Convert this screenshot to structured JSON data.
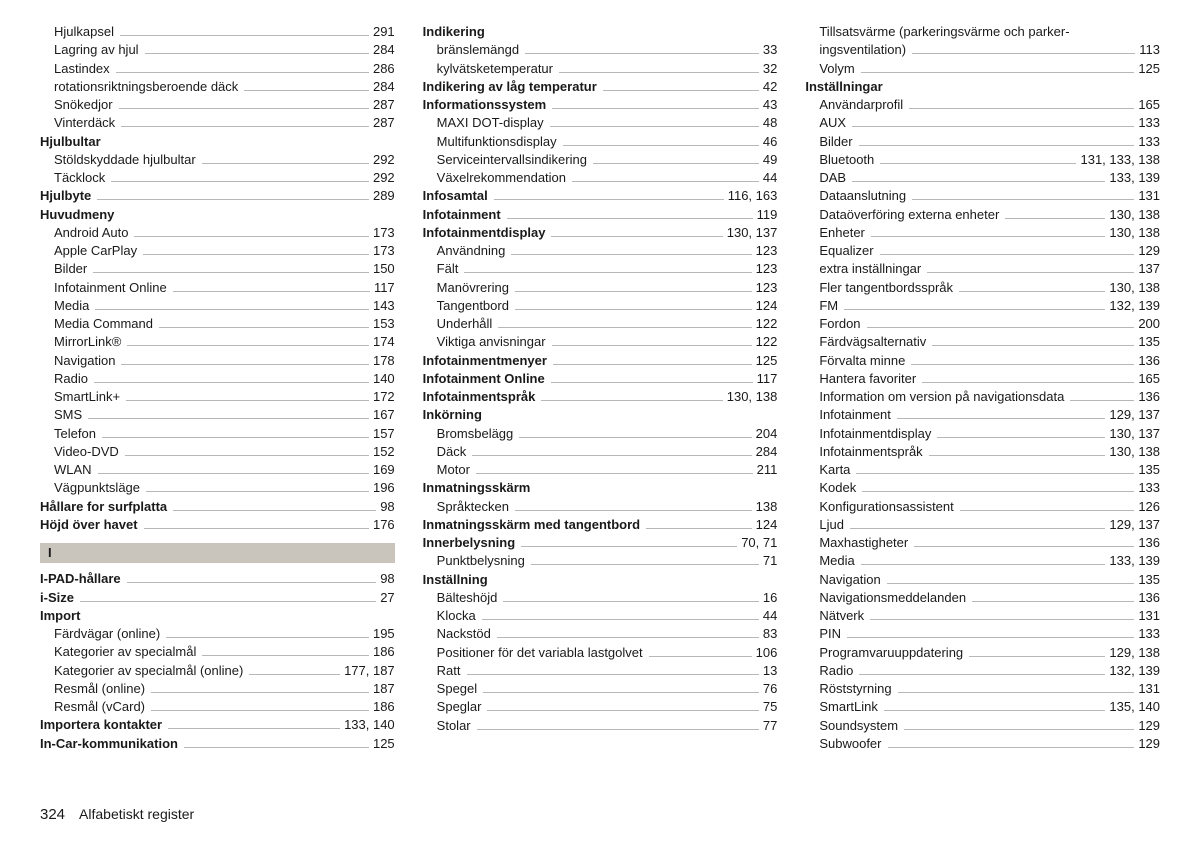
{
  "page_number": "324",
  "footer_title": "Alfabetiskt register",
  "letter_header": "I",
  "col1": [
    {
      "t": "Hjulkapsel",
      "p": "291",
      "sub": 1
    },
    {
      "t": "Lagring av hjul",
      "p": "284",
      "sub": 1
    },
    {
      "t": "Lastindex",
      "p": "286",
      "sub": 1
    },
    {
      "t": "rotationsriktningsberoende däck",
      "p": "284",
      "sub": 1
    },
    {
      "t": "Snökedjor",
      "p": "287",
      "sub": 1
    },
    {
      "t": "Vinterdäck",
      "p": "287",
      "sub": 1
    },
    {
      "t": "Hjulbultar",
      "p": "",
      "sub": 0,
      "bold": 1,
      "noleader": 1
    },
    {
      "t": "Stöldskyddade hjulbultar",
      "p": "292",
      "sub": 1
    },
    {
      "t": "Täcklock",
      "p": "292",
      "sub": 1
    },
    {
      "t": "Hjulbyte",
      "p": "289",
      "sub": 0,
      "bold": 1
    },
    {
      "t": "Huvudmeny",
      "p": "",
      "sub": 0,
      "bold": 1,
      "noleader": 1
    },
    {
      "t": "Android Auto",
      "p": "173",
      "sub": 1
    },
    {
      "t": "Apple CarPlay",
      "p": "173",
      "sub": 1
    },
    {
      "t": "Bilder",
      "p": "150",
      "sub": 1
    },
    {
      "t": "Infotainment Online",
      "p": "117",
      "sub": 1
    },
    {
      "t": "Media",
      "p": "143",
      "sub": 1
    },
    {
      "t": "Media Command",
      "p": "153",
      "sub": 1
    },
    {
      "t": "MirrorLink®",
      "p": "174",
      "sub": 1
    },
    {
      "t": "Navigation",
      "p": "178",
      "sub": 1
    },
    {
      "t": "Radio",
      "p": "140",
      "sub": 1
    },
    {
      "t": "SmartLink+",
      "p": "172",
      "sub": 1
    },
    {
      "t": "SMS",
      "p": "167",
      "sub": 1
    },
    {
      "t": "Telefon",
      "p": "157",
      "sub": 1
    },
    {
      "t": "Video-DVD",
      "p": "152",
      "sub": 1
    },
    {
      "t": "WLAN",
      "p": "169",
      "sub": 1
    },
    {
      "t": "Vägpunktsläge",
      "p": "196",
      "sub": 1
    },
    {
      "t": "Hållare for surfplatta",
      "p": "98",
      "sub": 0,
      "bold": 1
    },
    {
      "t": "Höjd över havet",
      "p": "176",
      "sub": 0,
      "bold": 1
    }
  ],
  "col1b": [
    {
      "t": "I-PAD-hållare",
      "p": "98",
      "sub": 0,
      "bold": 1
    },
    {
      "t": "i-Size",
      "p": "27",
      "sub": 0,
      "bold": 1
    },
    {
      "t": "Import",
      "p": "",
      "sub": 0,
      "bold": 1,
      "noleader": 1
    },
    {
      "t": "Färdvägar (online)",
      "p": "195",
      "sub": 1
    },
    {
      "t": "Kategorier av specialmål",
      "p": "186",
      "sub": 1
    },
    {
      "t": "Kategorier av specialmål (online)",
      "p": "177, 187",
      "sub": 1
    },
    {
      "t": "Resmål (online)",
      "p": "187",
      "sub": 1
    },
    {
      "t": "Resmål (vCard)",
      "p": "186",
      "sub": 1
    },
    {
      "t": "Importera kontakter",
      "p": "133, 140",
      "sub": 0,
      "bold": 1
    },
    {
      "t": "In-Car-kommunikation",
      "p": "125",
      "sub": 0,
      "bold": 1
    }
  ],
  "col2": [
    {
      "t": "Indikering",
      "p": "",
      "sub": 0,
      "bold": 1,
      "noleader": 1
    },
    {
      "t": "bränslemängd",
      "p": "33",
      "sub": 1
    },
    {
      "t": "kylvätsketemperatur",
      "p": "32",
      "sub": 1
    },
    {
      "t": "Indikering av låg temperatur",
      "p": "42",
      "sub": 0,
      "bold": 1
    },
    {
      "t": "Informationssystem",
      "p": "43",
      "sub": 0,
      "bold": 1
    },
    {
      "t": "MAXI DOT-display",
      "p": "48",
      "sub": 1
    },
    {
      "t": "Multifunktionsdisplay",
      "p": "46",
      "sub": 1
    },
    {
      "t": "Serviceintervallsindikering",
      "p": "49",
      "sub": 1
    },
    {
      "t": "Växelrekommendation",
      "p": "44",
      "sub": 1
    },
    {
      "t": "Infosamtal",
      "p": "116, 163",
      "sub": 0,
      "bold": 1
    },
    {
      "t": "Infotainment",
      "p": "119",
      "sub": 0,
      "bold": 1
    },
    {
      "t": "Infotainmentdisplay",
      "p": "130, 137",
      "sub": 0,
      "bold": 1
    },
    {
      "t": "Användning",
      "p": "123",
      "sub": 1
    },
    {
      "t": "Fält",
      "p": "123",
      "sub": 1
    },
    {
      "t": "Manövrering",
      "p": "123",
      "sub": 1
    },
    {
      "t": "Tangentbord",
      "p": "124",
      "sub": 1
    },
    {
      "t": "Underhåll",
      "p": "122",
      "sub": 1
    },
    {
      "t": "Viktiga anvisningar",
      "p": "122",
      "sub": 1
    },
    {
      "t": "Infotainmentmenyer",
      "p": "125",
      "sub": 0,
      "bold": 1
    },
    {
      "t": "Infotainment Online",
      "p": "117",
      "sub": 0,
      "bold": 1
    },
    {
      "t": "Infotainmentspråk",
      "p": "130, 138",
      "sub": 0,
      "bold": 1
    },
    {
      "t": "Inkörning",
      "p": "",
      "sub": 0,
      "bold": 1,
      "noleader": 1
    },
    {
      "t": "Bromsbelägg",
      "p": "204",
      "sub": 1
    },
    {
      "t": "Däck",
      "p": "284",
      "sub": 1
    },
    {
      "t": "Motor",
      "p": "211",
      "sub": 1
    },
    {
      "t": "Inmatningsskärm",
      "p": "",
      "sub": 0,
      "bold": 1,
      "noleader": 1
    },
    {
      "t": "Språktecken",
      "p": "138",
      "sub": 1
    },
    {
      "t": "Inmatningsskärm med tangentbord",
      "p": "124",
      "sub": 0,
      "bold": 1
    },
    {
      "t": "Innerbelysning",
      "p": "70, 71",
      "sub": 0,
      "bold": 1
    },
    {
      "t": "Punktbelysning",
      "p": "71",
      "sub": 1
    },
    {
      "t": "Inställning",
      "p": "",
      "sub": 0,
      "bold": 1,
      "noleader": 1
    },
    {
      "t": "Bälteshöjd",
      "p": "16",
      "sub": 1
    },
    {
      "t": "Klocka",
      "p": "44",
      "sub": 1
    },
    {
      "t": "Nackstöd",
      "p": "83",
      "sub": 1
    },
    {
      "t": "Positioner för det variabla lastgolvet",
      "p": "106",
      "sub": 1
    },
    {
      "t": "Ratt",
      "p": "13",
      "sub": 1
    },
    {
      "t": "Spegel",
      "p": "76",
      "sub": 1
    },
    {
      "t": "Speglar",
      "p": "75",
      "sub": 1
    },
    {
      "t": "Stolar",
      "p": "77",
      "sub": 1
    }
  ],
  "col3": [
    {
      "t": "Tillsatsvärme (parkeringsvärme och parker-",
      "p": "",
      "sub": 1,
      "noleader": 1
    },
    {
      "t": "ingsventilation)",
      "p": "113",
      "sub": 1,
      "contline": 1
    },
    {
      "t": "Volym",
      "p": "125",
      "sub": 1
    },
    {
      "t": "Inställningar",
      "p": "",
      "sub": 0,
      "bold": 1,
      "noleader": 1
    },
    {
      "t": "Användarprofil",
      "p": "165",
      "sub": 1
    },
    {
      "t": "AUX",
      "p": "133",
      "sub": 1
    },
    {
      "t": "Bilder",
      "p": "133",
      "sub": 1
    },
    {
      "t": "Bluetooth",
      "p": "131, 133, 138",
      "sub": 1
    },
    {
      "t": "DAB",
      "p": "133, 139",
      "sub": 1
    },
    {
      "t": "Dataanslutning",
      "p": "131",
      "sub": 1
    },
    {
      "t": "Dataöverföring externa enheter",
      "p": "130, 138",
      "sub": 1
    },
    {
      "t": "Enheter",
      "p": "130, 138",
      "sub": 1
    },
    {
      "t": "Equalizer",
      "p": "129",
      "sub": 1
    },
    {
      "t": "extra inställningar",
      "p": "137",
      "sub": 1
    },
    {
      "t": "Fler tangentbordsspråk",
      "p": "130, 138",
      "sub": 1
    },
    {
      "t": "FM",
      "p": "132, 139",
      "sub": 1
    },
    {
      "t": "Fordon",
      "p": "200",
      "sub": 1
    },
    {
      "t": "Färdvägsalternativ",
      "p": "135",
      "sub": 1
    },
    {
      "t": "Förvalta minne",
      "p": "136",
      "sub": 1
    },
    {
      "t": "Hantera favoriter",
      "p": "165",
      "sub": 1
    },
    {
      "t": "Information om version på navigationsdata",
      "p": "136",
      "sub": 1
    },
    {
      "t": "Infotainment",
      "p": "129, 137",
      "sub": 1
    },
    {
      "t": "Infotainmentdisplay",
      "p": "130, 137",
      "sub": 1
    },
    {
      "t": "Infotainmentspråk",
      "p": "130, 138",
      "sub": 1
    },
    {
      "t": "Karta",
      "p": "135",
      "sub": 1
    },
    {
      "t": "Kodek",
      "p": "133",
      "sub": 1
    },
    {
      "t": "Konfigurationsassistent",
      "p": "126",
      "sub": 1
    },
    {
      "t": "Ljud",
      "p": "129, 137",
      "sub": 1
    },
    {
      "t": "Maxhastigheter",
      "p": "136",
      "sub": 1
    },
    {
      "t": "Media",
      "p": "133, 139",
      "sub": 1
    },
    {
      "t": "Navigation",
      "p": "135",
      "sub": 1
    },
    {
      "t": "Navigationsmeddelanden",
      "p": "136",
      "sub": 1
    },
    {
      "t": "Nätverk",
      "p": "131",
      "sub": 1
    },
    {
      "t": "PIN",
      "p": "133",
      "sub": 1
    },
    {
      "t": "Programvaruuppdatering",
      "p": "129, 138",
      "sub": 1
    },
    {
      "t": "Radio",
      "p": "132, 139",
      "sub": 1
    },
    {
      "t": "Röststyrning",
      "p": "131",
      "sub": 1
    },
    {
      "t": "SmartLink",
      "p": "135, 140",
      "sub": 1
    },
    {
      "t": "Soundsystem",
      "p": "129",
      "sub": 1
    },
    {
      "t": "Subwoofer",
      "p": "129",
      "sub": 1
    }
  ]
}
